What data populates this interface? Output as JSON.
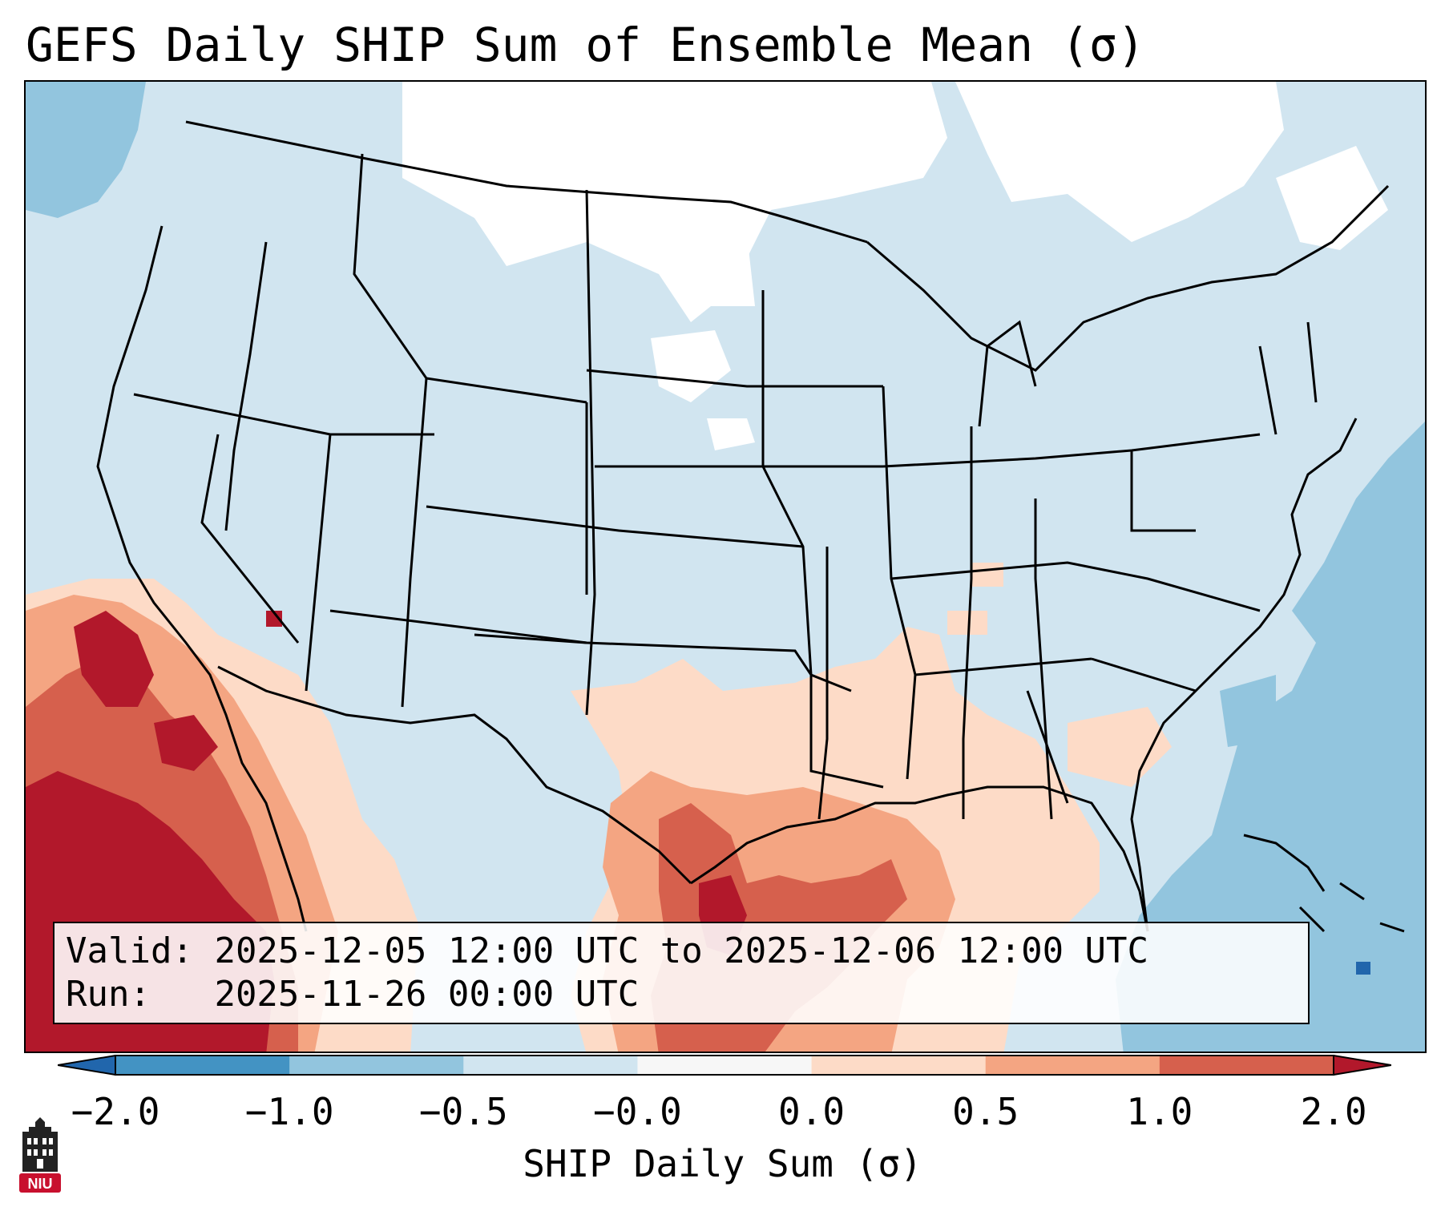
{
  "title": "GEFS Daily SHIP Sum of Ensemble Mean (σ)",
  "info": {
    "valid_label": "Valid:",
    "valid_value": "2025-12-05 12:00 UTC to 2025-12-06 12:00 UTC",
    "run_label": "Run:",
    "run_value": "2025-11-26 00:00 UTC"
  },
  "colorbar": {
    "label": "SHIP Daily Sum (σ)",
    "ticks": [
      "−2.0",
      "−1.0",
      "−0.5",
      "−0.0",
      "0.0",
      "0.5",
      "1.0",
      "2.0"
    ],
    "bins": [
      {
        "range": "< -2.0",
        "color": "#2166ac"
      },
      {
        "range": "-2.0 to -1.0",
        "color": "#4393c3"
      },
      {
        "range": "-1.0 to -0.5",
        "color": "#92c5de"
      },
      {
        "range": "-0.5 to -0.0",
        "color": "#d1e5f0"
      },
      {
        "range": "-0.0 to 0.0",
        "color": "#f7f7f7"
      },
      {
        "range": "0.0 to 0.5",
        "color": "#fddbc7"
      },
      {
        "range": "0.5 to 1.0",
        "color": "#f4a582"
      },
      {
        "range": "1.0 to 2.0",
        "color": "#d6604d"
      },
      {
        "range": "> 2.0",
        "color": "#b2182b"
      }
    ]
  },
  "logo": {
    "text": "NIU",
    "color": "#c8102e"
  }
}
